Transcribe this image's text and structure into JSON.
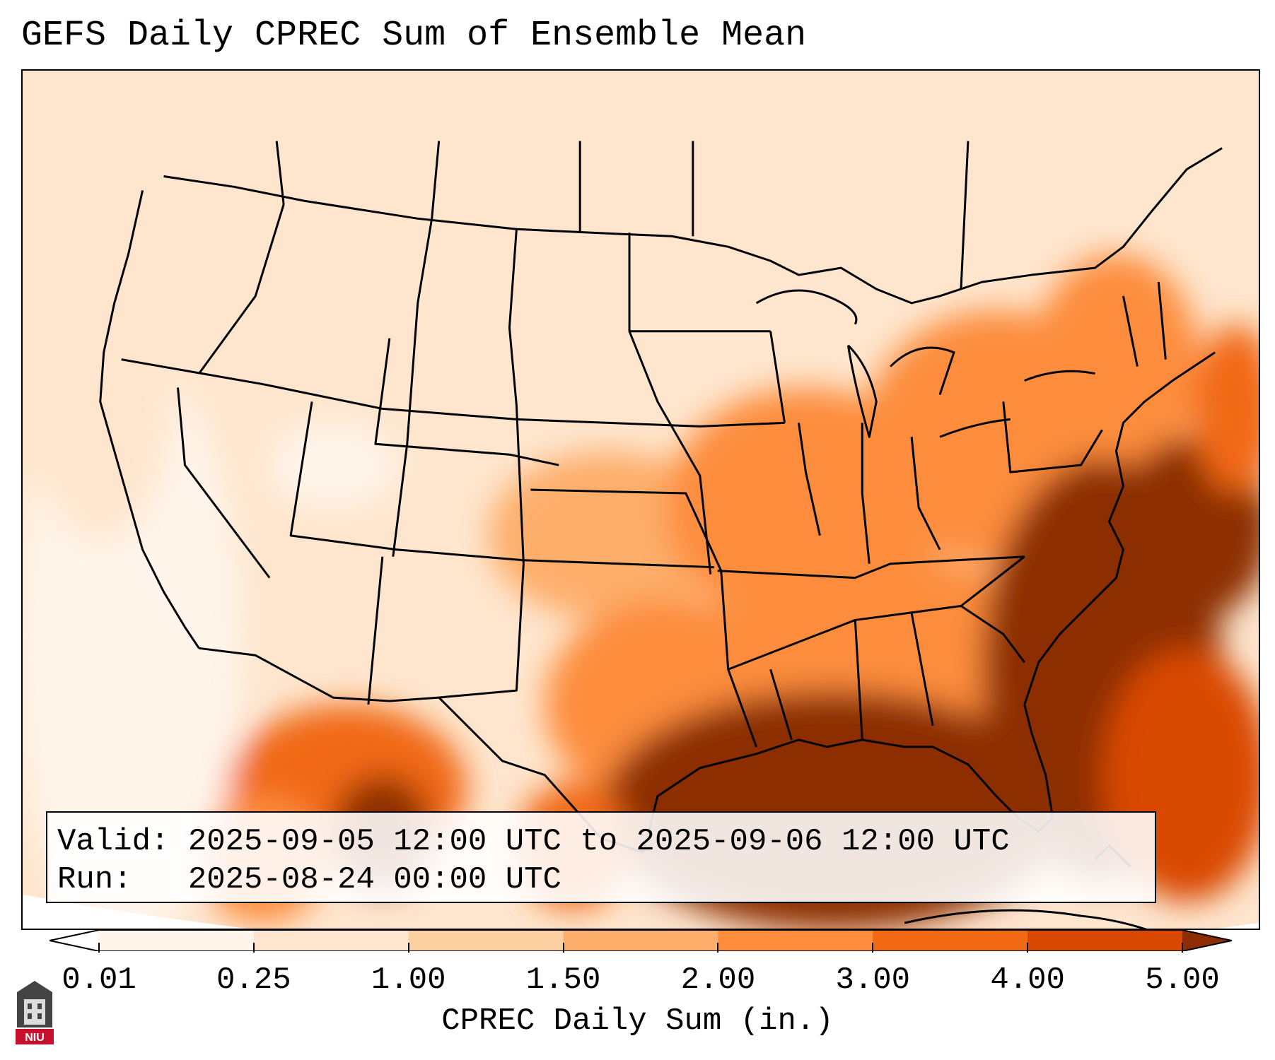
{
  "title": "GEFS Daily CPREC Sum of Ensemble Mean",
  "info": {
    "valid": "Valid: 2025-09-05 12:00 UTC to 2025-09-06 12:00 UTC",
    "run": "Run:   2025-08-24 00:00 UTC"
  },
  "colorbar": {
    "label": "CPREC Daily Sum (in.)",
    "ticks": [
      "0.01",
      "0.25",
      "1.00",
      "1.50",
      "2.00",
      "3.00",
      "4.00",
      "5.00"
    ],
    "colors": [
      "#fff5eb",
      "#fee6ce",
      "#fdd0a2",
      "#fdae6b",
      "#fd8d3c",
      "#f16913",
      "#d94801",
      "#8c2d04"
    ],
    "extend": "both"
  },
  "logo": {
    "name": "NIU",
    "text": "NIU"
  },
  "map": {
    "region": "Contiguous United States",
    "projection": "Lambert Conformal"
  }
}
